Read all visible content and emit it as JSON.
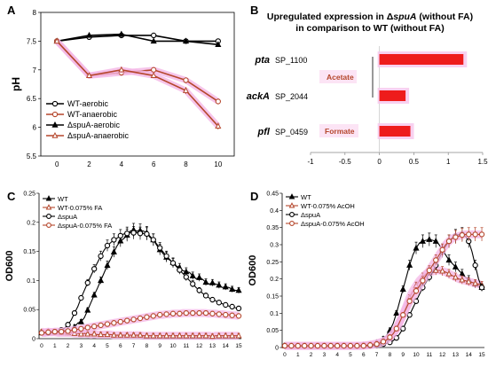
{
  "chart_data": [
    {
      "panel": "A",
      "type": "line",
      "ylabel": "pH",
      "xlabel": "",
      "x": [
        0,
        2,
        4,
        6,
        8,
        10
      ],
      "xticks": [
        "0",
        "2",
        "4",
        "6",
        "8",
        "10"
      ],
      "ylim": [
        5.5,
        8
      ],
      "yticks": [
        "5.5",
        "6",
        "6.5",
        "7",
        "7.5",
        "8"
      ],
      "legend_position": "bottom-left",
      "series": [
        {
          "name": "WT-aerobic",
          "values": [
            7.5,
            7.57,
            7.6,
            7.6,
            7.5,
            7.5
          ],
          "color": "#000000",
          "marker": "circle",
          "errors": [
            0,
            0.04,
            0.04,
            0.02,
            0.02,
            0.03
          ]
        },
        {
          "name": "WT-anaerobic",
          "values": [
            7.5,
            6.9,
            6.95,
            7.0,
            6.82,
            6.45
          ],
          "color": "#b5472c",
          "marker": "circle",
          "errors": [
            0,
            0.03,
            0.05,
            0.04,
            0.05,
            0.05
          ]
        },
        {
          "name": "ΔspuA-aerobic",
          "values": [
            7.5,
            7.6,
            7.62,
            7.5,
            7.5,
            7.44
          ],
          "color": "#000000",
          "marker": "triangle",
          "errors": [
            0,
            0.04,
            0.05,
            0.03,
            0.02,
            0.04
          ]
        },
        {
          "name": "ΔspuA-anaerobic",
          "values": [
            7.5,
            6.9,
            7.0,
            6.9,
            6.64,
            6.02
          ],
          "color": "#b5472c",
          "marker": "triangle",
          "errors": [
            0,
            0.03,
            0.04,
            0.04,
            0.06,
            0.06
          ]
        }
      ]
    },
    {
      "panel": "B",
      "type": "bar",
      "orientation": "horizontal",
      "title_line1_prefix": "Upregulated expression in Δ",
      "title_line1_italic": "spuA",
      "title_line1_suffix": " (without FA)",
      "title_line2": "in comparison to WT (without FA)",
      "genes": [
        "pta",
        "ackA",
        "pfl"
      ],
      "loci": [
        "SP_1100",
        "SP_2044",
        "SP_0459"
      ],
      "values": [
        1.22,
        0.38,
        0.45
      ],
      "bar_color": "#ee1c1c",
      "group_labels": [
        "Acetate",
        "Formate"
      ],
      "group_label_color": "#b5472c",
      "xlim": [
        -1,
        1.5
      ],
      "xticks": [
        "-1",
        "-0.5",
        "0",
        "0.5",
        "1",
        "1.5"
      ]
    },
    {
      "panel": "C",
      "type": "line",
      "ylabel": "OD600",
      "x": [
        0,
        0.25,
        0.5,
        0.75,
        1,
        1.25,
        1.5,
        1.75,
        2,
        2.25,
        2.5,
        2.75,
        3,
        3.25,
        3.5,
        3.75,
        4,
        4.25,
        4.5,
        4.75,
        5,
        5.25,
        5.5,
        5.75,
        6,
        6.25,
        6.5,
        6.75,
        7,
        7.25,
        7.5,
        7.75,
        8,
        8.25,
        8.5,
        8.75,
        9,
        9.25,
        9.5,
        9.75,
        10,
        10.25,
        10.5,
        10.75,
        11,
        11.25,
        11.5,
        11.75,
        12,
        12.25,
        12.5,
        12.75,
        13,
        13.25,
        13.5,
        13.75,
        14,
        14.25,
        14.5,
        14.75,
        15
      ],
      "xticks": [
        "0",
        "1",
        "2",
        "3",
        "4",
        "5",
        "6",
        "7",
        "8",
        "9",
        "10",
        "11",
        "12",
        "13",
        "14",
        "15"
      ],
      "ylim": [
        0,
        0.25
      ],
      "yticks": [
        "0",
        "0.05",
        "0.1",
        "0.15",
        "0.2",
        "0.25"
      ],
      "legend_position": "top-left",
      "series": [
        {
          "name": "WT",
          "color": "#000000",
          "marker": "triangle",
          "values": [
            0.01,
            0.011,
            0.01,
            0.012,
            0.011,
            0.012,
            0.013,
            0.014,
            0.013,
            0.015,
            0.02,
            0.027,
            0.029,
            0.036,
            0.049,
            0.062,
            0.075,
            0.087,
            0.1,
            0.113,
            0.126,
            0.137,
            0.149,
            0.16,
            0.168,
            0.172,
            0.178,
            0.185,
            0.187,
            0.185,
            0.186,
            0.185,
            0.182,
            0.174,
            0.17,
            0.161,
            0.153,
            0.146,
            0.14,
            0.135,
            0.131,
            0.125,
            0.122,
            0.117,
            0.115,
            0.114,
            0.108,
            0.103,
            0.105,
            0.102,
            0.097,
            0.094,
            0.096,
            0.094,
            0.092,
            0.088,
            0.089,
            0.088,
            0.085,
            0.083,
            0.083
          ]
        },
        {
          "name": "WT-0.075% FA",
          "color": "#b5472c",
          "marker": "triangle",
          "values": [
            0.012,
            0.011,
            0.012,
            0.011,
            0.011,
            0.01,
            0.01,
            0.01,
            0.01,
            0.01,
            0.009,
            0.009,
            0.008,
            0.009,
            0.008,
            0.007,
            0.008,
            0.007,
            0.007,
            0.007,
            0.007,
            0.007,
            0.006,
            0.006,
            0.006,
            0.006,
            0.006,
            0.006,
            0.006,
            0.006,
            0.006,
            0.005,
            0.005,
            0.005,
            0.005,
            0.005,
            0.005,
            0.005,
            0.005,
            0.005,
            0.005,
            0.005,
            0.005,
            0.005,
            0.005,
            0.005,
            0.005,
            0.005,
            0.005,
            0.005,
            0.005,
            0.005,
            0.004,
            0.005,
            0.005,
            0.005,
            0.005,
            0.005,
            0.005,
            0.005,
            0.005
          ]
        },
        {
          "name": "ΔspuA",
          "color": "#000000",
          "marker": "circle",
          "values": [
            0.01,
            0.01,
            0.01,
            0.011,
            0.012,
            0.013,
            0.015,
            0.018,
            0.024,
            0.032,
            0.044,
            0.055,
            0.07,
            0.083,
            0.096,
            0.108,
            0.12,
            0.131,
            0.142,
            0.152,
            0.16,
            0.165,
            0.17,
            0.173,
            0.177,
            0.18,
            0.181,
            0.182,
            0.182,
            0.182,
            0.181,
            0.181,
            0.18,
            0.176,
            0.17,
            0.163,
            0.156,
            0.149,
            0.142,
            0.136,
            0.13,
            0.124,
            0.118,
            0.112,
            0.106,
            0.1,
            0.094,
            0.088,
            0.083,
            0.078,
            0.074,
            0.07,
            0.067,
            0.065,
            0.062,
            0.06,
            0.058,
            0.056,
            0.055,
            0.053,
            0.052
          ]
        },
        {
          "name": "ΔspuA-0.075% FA",
          "color": "#b5472c",
          "marker": "circle",
          "values": [
            0.01,
            0.01,
            0.011,
            0.011,
            0.012,
            0.012,
            0.012,
            0.013,
            0.013,
            0.014,
            0.015,
            0.016,
            0.017,
            0.018,
            0.019,
            0.02,
            0.021,
            0.022,
            0.023,
            0.024,
            0.025,
            0.026,
            0.027,
            0.028,
            0.029,
            0.03,
            0.031,
            0.032,
            0.033,
            0.034,
            0.035,
            0.036,
            0.037,
            0.038,
            0.039,
            0.04,
            0.041,
            0.041,
            0.042,
            0.042,
            0.043,
            0.043,
            0.043,
            0.044,
            0.044,
            0.044,
            0.044,
            0.044,
            0.044,
            0.044,
            0.044,
            0.043,
            0.043,
            0.043,
            0.042,
            0.042,
            0.041,
            0.041,
            0.04,
            0.04,
            0.039
          ]
        }
      ]
    },
    {
      "panel": "D",
      "type": "line",
      "ylabel": "OD600",
      "x": [
        0,
        0.25,
        0.5,
        0.75,
        1,
        1.25,
        1.5,
        1.75,
        2,
        2.25,
        2.5,
        2.75,
        3,
        3.25,
        3.5,
        3.75,
        4,
        4.25,
        4.5,
        4.75,
        5,
        5.25,
        5.5,
        5.75,
        6,
        6.25,
        6.5,
        6.75,
        7,
        7.25,
        7.5,
        7.75,
        8,
        8.25,
        8.5,
        8.75,
        9,
        9.25,
        9.5,
        9.75,
        10,
        10.25,
        10.5,
        10.75,
        11,
        11.25,
        11.5,
        11.75,
        12,
        12.25,
        12.5,
        12.75,
        13,
        13.25,
        13.5,
        13.75,
        14,
        14.25,
        14.5,
        14.75,
        15
      ],
      "xticks": [
        "0",
        "1",
        "2",
        "3",
        "4",
        "5",
        "6",
        "7",
        "8",
        "9",
        "10",
        "11",
        "12",
        "13",
        "14",
        "15"
      ],
      "ylim": [
        0,
        0.45
      ],
      "yticks": [
        "0",
        "0.05",
        "0.1",
        "0.15",
        "0.2",
        "0.25",
        "0.3",
        "0.35",
        "0.4",
        "0.45"
      ],
      "legend_position": "top-left",
      "series": [
        {
          "name": "WT",
          "color": "#000000",
          "marker": "triangle",
          "values": [
            0.005,
            0.005,
            0.005,
            0.005,
            0.005,
            0.005,
            0.005,
            0.005,
            0.005,
            0.005,
            0.005,
            0.005,
            0.005,
            0.005,
            0.005,
            0.005,
            0.005,
            0.005,
            0.005,
            0.005,
            0.005,
            0.005,
            0.005,
            0.006,
            0.007,
            0.008,
            0.009,
            0.011,
            0.014,
            0.018,
            0.025,
            0.035,
            0.05,
            0.07,
            0.1,
            0.135,
            0.17,
            0.205,
            0.24,
            0.27,
            0.29,
            0.305,
            0.31,
            0.313,
            0.315,
            0.313,
            0.31,
            0.3,
            0.285,
            0.27,
            0.255,
            0.245,
            0.235,
            0.225,
            0.215,
            0.205,
            0.198,
            0.19,
            0.185,
            0.18,
            0.175
          ]
        },
        {
          "name": "WT-0.075% AcOH",
          "color": "#b5472c",
          "marker": "triangle",
          "values": [
            0.005,
            0.005,
            0.005,
            0.005,
            0.005,
            0.005,
            0.005,
            0.005,
            0.005,
            0.005,
            0.005,
            0.005,
            0.005,
            0.005,
            0.005,
            0.005,
            0.005,
            0.005,
            0.005,
            0.005,
            0.005,
            0.005,
            0.005,
            0.005,
            0.006,
            0.007,
            0.008,
            0.01,
            0.012,
            0.015,
            0.018,
            0.023,
            0.03,
            0.04,
            0.055,
            0.075,
            0.095,
            0.12,
            0.145,
            0.165,
            0.18,
            0.195,
            0.205,
            0.215,
            0.22,
            0.222,
            0.225,
            0.225,
            0.223,
            0.22,
            0.215,
            0.21,
            0.205,
            0.2,
            0.197,
            0.195,
            0.192,
            0.19,
            0.187,
            0.185,
            0.182
          ]
        },
        {
          "name": "ΔspuA",
          "color": "#000000",
          "marker": "circle",
          "values": [
            0.005,
            0.005,
            0.005,
            0.005,
            0.005,
            0.005,
            0.005,
            0.005,
            0.005,
            0.005,
            0.005,
            0.005,
            0.005,
            0.005,
            0.005,
            0.005,
            0.005,
            0.005,
            0.005,
            0.005,
            0.005,
            0.005,
            0.005,
            0.005,
            0.005,
            0.005,
            0.005,
            0.005,
            0.006,
            0.008,
            0.01,
            0.012,
            0.015,
            0.02,
            0.028,
            0.04,
            0.055,
            0.075,
            0.095,
            0.115,
            0.135,
            0.155,
            0.175,
            0.19,
            0.205,
            0.22,
            0.24,
            0.26,
            0.28,
            0.295,
            0.31,
            0.32,
            0.325,
            0.33,
            0.33,
            0.325,
            0.31,
            0.28,
            0.24,
            0.2,
            0.175
          ]
        },
        {
          "name": "ΔspuA-0.075% AcOH",
          "color": "#b5472c",
          "marker": "circle",
          "values": [
            0.005,
            0.005,
            0.005,
            0.005,
            0.005,
            0.005,
            0.005,
            0.005,
            0.005,
            0.005,
            0.005,
            0.005,
            0.005,
            0.005,
            0.005,
            0.005,
            0.005,
            0.005,
            0.005,
            0.005,
            0.005,
            0.005,
            0.005,
            0.005,
            0.005,
            0.006,
            0.007,
            0.008,
            0.01,
            0.013,
            0.017,
            0.022,
            0.03,
            0.04,
            0.055,
            0.075,
            0.095,
            0.115,
            0.135,
            0.15,
            0.165,
            0.18,
            0.195,
            0.21,
            0.225,
            0.24,
            0.255,
            0.27,
            0.285,
            0.3,
            0.31,
            0.318,
            0.322,
            0.325,
            0.328,
            0.33,
            0.33,
            0.33,
            0.33,
            0.33,
            0.33
          ]
        }
      ]
    }
  ],
  "panels": {
    "A": "A",
    "B": "B",
    "C": "C",
    "D": "D"
  }
}
